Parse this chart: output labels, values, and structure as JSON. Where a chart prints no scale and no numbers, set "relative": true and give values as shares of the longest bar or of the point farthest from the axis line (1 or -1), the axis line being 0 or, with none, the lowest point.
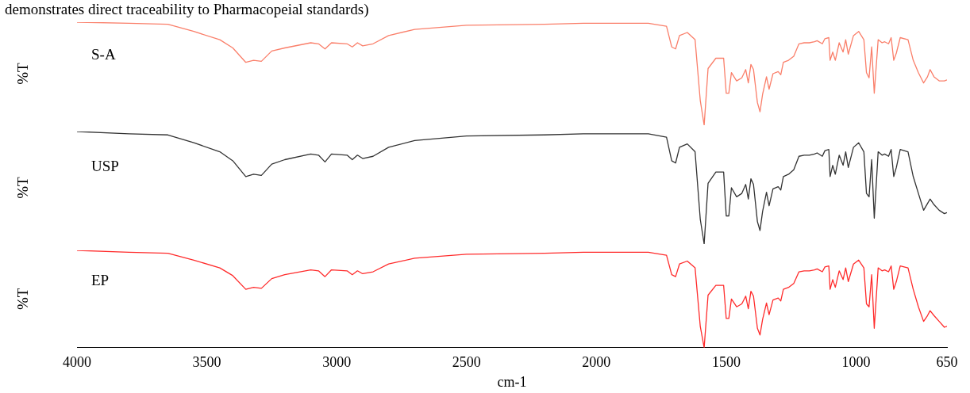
{
  "chart_data": [
    {
      "type": "line",
      "annotations": [
        "demonstrates direct traceability to Pharmacopeial standards)"
      ],
      "ylabel": "%T",
      "relative": true,
      "tick_labels": false,
      "xlim": [
        4000,
        650
      ],
      "grid": false,
      "legend": false,
      "marker": "none",
      "x": [
        4000,
        3800,
        3650,
        3550,
        3450,
        3400,
        3350,
        3320,
        3290,
        3250,
        3200,
        3100,
        3070,
        3045,
        3020,
        2960,
        2940,
        2920,
        2900,
        2860,
        2800,
        2700,
        2500,
        2200,
        2050,
        1800,
        1730,
        1710,
        1695,
        1680,
        1650,
        1620,
        1600,
        1585,
        1570,
        1540,
        1510,
        1500,
        1490,
        1480,
        1460,
        1440,
        1425,
        1415,
        1405,
        1395,
        1380,
        1370,
        1360,
        1345,
        1335,
        1320,
        1300,
        1290,
        1280,
        1260,
        1240,
        1220,
        1200,
        1180,
        1160,
        1150,
        1130,
        1120,
        1105,
        1100,
        1090,
        1080,
        1065,
        1050,
        1040,
        1030,
        1010,
        990,
        970,
        960,
        950,
        940,
        930,
        915,
        900,
        890,
        875,
        865,
        855,
        845,
        830,
        800,
        780,
        760,
        740,
        725,
        715,
        700,
        680,
        660,
        650
      ],
      "series": [
        {
          "name": "S-A",
          "color": "#fa7f6a",
          "values": [
            1,
            0.99,
            0.98,
            0.91,
            0.83,
            0.75,
            0.61,
            0.63,
            0.62,
            0.72,
            0.75,
            0.8,
            0.79,
            0.74,
            0.8,
            0.79,
            0.76,
            0.8,
            0.77,
            0.79,
            0.87,
            0.93,
            0.97,
            0.98,
            0.99,
            0.99,
            0.96,
            0.76,
            0.74,
            0.87,
            0.9,
            0.83,
            0.24,
            0,
            0.55,
            0.65,
            0.65,
            0.31,
            0.31,
            0.51,
            0.43,
            0.46,
            0.54,
            0.41,
            0.59,
            0.54,
            0.22,
            0.13,
            0.3,
            0.47,
            0.35,
            0.5,
            0.52,
            0.49,
            0.61,
            0.63,
            0.67,
            0.79,
            0.8,
            0.8,
            0.81,
            0.82,
            0.79,
            0.84,
            0.85,
            0.63,
            0.71,
            0.63,
            0.8,
            0.71,
            0.83,
            0.69,
            0.87,
            0.91,
            0.83,
            0.51,
            0.46,
            0.76,
            0.31,
            0.83,
            0.8,
            0.81,
            0.79,
            0.85,
            0.63,
            0.7,
            0.85,
            0.83,
            0.63,
            0.51,
            0.41,
            0.47,
            0.54,
            0.47,
            0.43,
            0.43,
            0.44
          ]
        }
      ]
    },
    {
      "type": "line",
      "ylabel": "%T",
      "relative": true,
      "tick_labels": false,
      "xlim": [
        4000,
        650
      ],
      "grid": false,
      "legend": false,
      "marker": "none",
      "x": [
        4000,
        3800,
        3650,
        3550,
        3450,
        3400,
        3350,
        3320,
        3290,
        3250,
        3200,
        3100,
        3070,
        3045,
        3020,
        2960,
        2940,
        2920,
        2900,
        2860,
        2800,
        2700,
        2500,
        2200,
        2050,
        1800,
        1730,
        1710,
        1695,
        1680,
        1650,
        1620,
        1600,
        1585,
        1570,
        1540,
        1510,
        1500,
        1490,
        1480,
        1460,
        1440,
        1425,
        1415,
        1405,
        1395,
        1380,
        1370,
        1360,
        1345,
        1335,
        1320,
        1300,
        1290,
        1280,
        1260,
        1240,
        1220,
        1200,
        1180,
        1160,
        1150,
        1130,
        1120,
        1105,
        1100,
        1090,
        1080,
        1065,
        1050,
        1040,
        1030,
        1010,
        990,
        970,
        960,
        950,
        940,
        930,
        915,
        900,
        890,
        875,
        865,
        855,
        845,
        830,
        800,
        780,
        760,
        740,
        725,
        715,
        700,
        680,
        660,
        650
      ],
      "series": [
        {
          "name": "USP",
          "color": "#333333",
          "values": [
            1,
            0.98,
            0.97,
            0.9,
            0.82,
            0.74,
            0.6,
            0.62,
            0.61,
            0.71,
            0.75,
            0.8,
            0.79,
            0.73,
            0.8,
            0.79,
            0.75,
            0.79,
            0.76,
            0.78,
            0.86,
            0.92,
            0.96,
            0.97,
            0.98,
            0.98,
            0.95,
            0.74,
            0.72,
            0.86,
            0.89,
            0.82,
            0.22,
            0,
            0.54,
            0.64,
            0.64,
            0.25,
            0.25,
            0.5,
            0.42,
            0.45,
            0.53,
            0.4,
            0.58,
            0.53,
            0.2,
            0.12,
            0.29,
            0.46,
            0.34,
            0.49,
            0.51,
            0.48,
            0.6,
            0.62,
            0.66,
            0.78,
            0.79,
            0.79,
            0.8,
            0.81,
            0.78,
            0.83,
            0.84,
            0.6,
            0.7,
            0.62,
            0.79,
            0.7,
            0.82,
            0.68,
            0.86,
            0.9,
            0.82,
            0.45,
            0.42,
            0.75,
            0.23,
            0.82,
            0.79,
            0.8,
            0.78,
            0.84,
            0.6,
            0.68,
            0.84,
            0.82,
            0.6,
            0.45,
            0.3,
            0.36,
            0.4,
            0.35,
            0.3,
            0.27,
            0.28
          ]
        }
      ]
    },
    {
      "type": "line",
      "ylabel": "%T",
      "xlabel": "cm-1",
      "relative": true,
      "tick_labels": "x",
      "xlim": [
        4000,
        650
      ],
      "xticks": [
        4000,
        3500,
        3000,
        2500,
        2000,
        1500,
        1000,
        650
      ],
      "grid": false,
      "legend": false,
      "marker": "none",
      "x": [
        4000,
        3800,
        3650,
        3550,
        3450,
        3400,
        3350,
        3320,
        3290,
        3250,
        3200,
        3100,
        3070,
        3045,
        3020,
        2960,
        2940,
        2920,
        2900,
        2860,
        2800,
        2700,
        2500,
        2200,
        2050,
        1800,
        1730,
        1710,
        1695,
        1680,
        1650,
        1620,
        1600,
        1585,
        1570,
        1540,
        1510,
        1500,
        1490,
        1480,
        1460,
        1440,
        1425,
        1415,
        1405,
        1395,
        1380,
        1370,
        1360,
        1345,
        1335,
        1320,
        1300,
        1290,
        1280,
        1260,
        1240,
        1220,
        1200,
        1180,
        1160,
        1150,
        1130,
        1120,
        1105,
        1100,
        1090,
        1080,
        1065,
        1050,
        1040,
        1030,
        1010,
        990,
        970,
        960,
        950,
        940,
        930,
        915,
        900,
        890,
        875,
        865,
        855,
        845,
        830,
        800,
        780,
        760,
        740,
        725,
        715,
        700,
        680,
        660,
        650
      ],
      "series": [
        {
          "name": "EP",
          "color": "#ff2b2b",
          "values": [
            1,
            0.98,
            0.97,
            0.9,
            0.82,
            0.74,
            0.6,
            0.62,
            0.61,
            0.71,
            0.75,
            0.8,
            0.79,
            0.73,
            0.8,
            0.79,
            0.75,
            0.79,
            0.76,
            0.78,
            0.86,
            0.92,
            0.96,
            0.97,
            0.98,
            0.98,
            0.95,
            0.75,
            0.73,
            0.86,
            0.89,
            0.82,
            0.22,
            0,
            0.54,
            0.64,
            0.64,
            0.3,
            0.3,
            0.5,
            0.42,
            0.45,
            0.53,
            0.4,
            0.58,
            0.53,
            0.2,
            0.13,
            0.29,
            0.46,
            0.34,
            0.49,
            0.51,
            0.48,
            0.6,
            0.62,
            0.66,
            0.78,
            0.79,
            0.79,
            0.8,
            0.81,
            0.78,
            0.83,
            0.84,
            0.6,
            0.7,
            0.62,
            0.79,
            0.7,
            0.82,
            0.68,
            0.86,
            0.9,
            0.82,
            0.45,
            0.42,
            0.75,
            0.2,
            0.82,
            0.79,
            0.8,
            0.78,
            0.84,
            0.6,
            0.68,
            0.84,
            0.82,
            0.6,
            0.42,
            0.27,
            0.33,
            0.38,
            0.33,
            0.27,
            0.21,
            0.22
          ]
        }
      ]
    }
  ]
}
